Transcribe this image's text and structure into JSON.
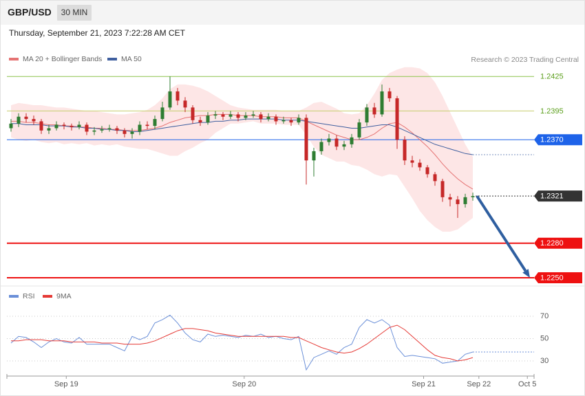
{
  "header": {
    "symbol": "GBP/USD",
    "interval": "30 MIN",
    "timestamp": "Thursday, September 21, 2023 7:22:28 AM CET"
  },
  "chart_data": [
    {
      "type": "candlestick",
      "annotation": "Research © 2023 Trading Central",
      "xlim": [
        -0.545,
        69.09
      ],
      "ylim": [
        1.22434,
        1.24556
      ],
      "up_color": "#2e7d32",
      "down_color": "#c62828",
      "open": [
        1.238,
        1.2384,
        1.239,
        1.2388,
        1.2386,
        1.2378,
        1.238,
        1.2383,
        1.2382,
        1.2381,
        1.2383,
        1.2377,
        1.2378,
        1.2379,
        1.238,
        1.2378,
        1.2375,
        1.2377,
        1.2383,
        1.2382,
        1.2388,
        1.2398,
        1.2412,
        1.2404,
        1.2398,
        1.2387,
        1.2385,
        1.2391,
        1.2392,
        1.239,
        1.2392,
        1.2389,
        1.2391,
        1.2392,
        1.2388,
        1.239,
        1.2386,
        1.2387,
        1.2385,
        1.2389,
        1.2352,
        1.236,
        1.2368,
        1.2371,
        1.2364,
        1.2366,
        1.2372,
        1.2385,
        1.2398,
        1.2392,
        1.2412,
        1.2406,
        1.237,
        1.2352,
        1.235,
        1.2346,
        1.234,
        1.2334,
        1.232,
        1.2318,
        1.2314,
        1.232
      ],
      "high": [
        1.2388,
        1.2393,
        1.2393,
        1.2391,
        1.2388,
        1.2383,
        1.2386,
        1.2385,
        1.2384,
        1.2386,
        1.2385,
        1.2381,
        1.2382,
        1.2383,
        1.2382,
        1.238,
        1.238,
        1.2386,
        1.2386,
        1.2391,
        1.2403,
        1.2425,
        1.2415,
        1.2407,
        1.24,
        1.239,
        1.2394,
        1.2395,
        1.2394,
        1.2395,
        1.2394,
        1.2394,
        1.2395,
        1.2394,
        1.2393,
        1.2392,
        1.239,
        1.2389,
        1.2392,
        1.2392,
        1.2363,
        1.2371,
        1.2375,
        1.2374,
        1.2369,
        1.2375,
        1.2388,
        1.2401,
        1.2402,
        1.2418,
        1.2415,
        1.2408,
        1.2373,
        1.2356,
        1.2353,
        1.2348,
        1.2342,
        1.2336,
        1.2323,
        1.2321,
        1.2323,
        1.2324
      ],
      "low": [
        1.2377,
        1.2381,
        1.2385,
        1.2383,
        1.2375,
        1.2375,
        1.2378,
        1.2379,
        1.2378,
        1.2379,
        1.2374,
        1.2374,
        1.2376,
        1.2377,
        1.2375,
        1.2372,
        1.2371,
        1.2374,
        1.2379,
        1.2379,
        1.2386,
        1.2396,
        1.24,
        1.2394,
        1.2384,
        1.2382,
        1.2383,
        1.2388,
        1.2387,
        1.2388,
        1.2386,
        1.2387,
        1.2389,
        1.2385,
        1.2386,
        1.2383,
        1.2384,
        1.2382,
        1.2383,
        1.2331,
        1.2338,
        1.2357,
        1.2365,
        1.2361,
        1.2361,
        1.2363,
        1.237,
        1.2382,
        1.2389,
        1.239,
        1.2403,
        1.2362,
        1.2348,
        1.2346,
        1.2343,
        1.2337,
        1.233,
        1.2316,
        1.2312,
        1.2302,
        1.2311,
        1.2317
      ],
      "close": [
        1.2384,
        1.239,
        1.2388,
        1.2386,
        1.2378,
        1.238,
        1.2383,
        1.2382,
        1.2381,
        1.2383,
        1.2377,
        1.2378,
        1.2379,
        1.238,
        1.2378,
        1.2375,
        1.2377,
        1.2383,
        1.2382,
        1.2388,
        1.2398,
        1.2412,
        1.2404,
        1.2398,
        1.2387,
        1.2385,
        1.2391,
        1.2392,
        1.239,
        1.2392,
        1.2389,
        1.2391,
        1.2392,
        1.2388,
        1.239,
        1.2386,
        1.2387,
        1.2385,
        1.2389,
        1.2352,
        1.236,
        1.2368,
        1.2371,
        1.2364,
        1.2366,
        1.2372,
        1.2385,
        1.2398,
        1.2392,
        1.2412,
        1.2406,
        1.237,
        1.2352,
        1.235,
        1.2346,
        1.234,
        1.2334,
        1.232,
        1.2318,
        1.2314,
        1.232,
        1.2321
      ],
      "bands": {
        "color": "#fde2e2",
        "upper": [
          1.24,
          1.2402,
          1.2401,
          1.24,
          1.24,
          1.2399,
          1.2398,
          1.2398,
          1.2397,
          1.2396,
          1.2395,
          1.2395,
          1.2394,
          1.2393,
          1.2392,
          1.2392,
          1.2393,
          1.2394,
          1.2396,
          1.24,
          1.2406,
          1.2414,
          1.2418,
          1.2418,
          1.2417,
          1.2415,
          1.2412,
          1.2408,
          1.2404,
          1.24,
          1.2398,
          1.2397,
          1.2396,
          1.2396,
          1.2396,
          1.2396,
          1.2395,
          1.2395,
          1.2395,
          1.2398,
          1.2402,
          1.2403,
          1.24,
          1.2397,
          1.2393,
          1.2392,
          1.2393,
          1.24,
          1.241,
          1.2422,
          1.2428,
          1.2431,
          1.2433,
          1.2433,
          1.2432,
          1.2428,
          1.242,
          1.2408,
          1.2394,
          1.238,
          1.2366,
          1.2355
        ],
        "lower": [
          1.2372,
          1.237,
          1.2369,
          1.237,
          1.2368,
          1.2367,
          1.2368,
          1.2366,
          1.2367,
          1.2366,
          1.2367,
          1.2365,
          1.2366,
          1.2365,
          1.2366,
          1.2364,
          1.2363,
          1.2362,
          1.2362,
          1.236,
          1.2358,
          1.2356,
          1.2356,
          1.236,
          1.2363,
          1.2367,
          1.237,
          1.2376,
          1.238,
          1.2384,
          1.2384,
          1.2385,
          1.2386,
          1.2384,
          1.2384,
          1.2384,
          1.2383,
          1.2383,
          1.2383,
          1.2374,
          1.2364,
          1.2357,
          1.2354,
          1.2351,
          1.2351,
          1.2348,
          1.2347,
          1.2344,
          1.234,
          1.2338,
          1.234,
          1.2339,
          1.2329,
          1.2319,
          1.2308,
          1.23,
          1.2294,
          1.229,
          1.229,
          1.2292,
          1.2297,
          1.2302
        ]
      },
      "series": [
        {
          "name": "MA 20 + Bollinger Bands",
          "color": "#e57373",
          "values": [
            1.2386,
            1.2386,
            1.2385,
            1.2385,
            1.2384,
            1.2383,
            1.2383,
            1.2382,
            1.2382,
            1.2381,
            1.2381,
            1.238,
            1.238,
            1.2379,
            1.2379,
            1.2378,
            1.2378,
            1.2378,
            1.2379,
            1.238,
            1.2382,
            1.2385,
            1.2387,
            1.2389,
            1.239,
            1.2391,
            1.2391,
            1.2392,
            1.2392,
            1.2392,
            1.2391,
            1.2391,
            1.2391,
            1.239,
            1.239,
            1.239,
            1.2389,
            1.2389,
            1.2389,
            1.2386,
            1.2383,
            1.238,
            1.2377,
            1.2374,
            1.2372,
            1.237,
            1.237,
            1.2372,
            1.2375,
            1.238,
            1.2384,
            1.2385,
            1.2381,
            1.2376,
            1.237,
            1.2364,
            1.2357,
            1.2349,
            1.2342,
            1.2336,
            1.2331,
            1.2327
          ]
        },
        {
          "name": "MA 50",
          "color": "#3f5f9f",
          "values": [
            1.2384,
            1.2384,
            1.2383,
            1.2383,
            1.2383,
            1.2382,
            1.2382,
            1.2382,
            1.2381,
            1.2381,
            1.238,
            1.238,
            1.2379,
            1.2379,
            1.2378,
            1.2378,
            1.2377,
            1.2377,
            1.2378,
            1.2379,
            1.238,
            1.2381,
            1.2382,
            1.2383,
            1.2384,
            1.2385,
            1.2385,
            1.2386,
            1.2386,
            1.2387,
            1.2387,
            1.2388,
            1.2388,
            1.2388,
            1.2388,
            1.2388,
            1.2387,
            1.2387,
            1.2387,
            1.2386,
            1.2385,
            1.2384,
            1.2383,
            1.2382,
            1.2381,
            1.238,
            1.238,
            1.2381,
            1.2382,
            1.2383,
            1.2383,
            1.2381,
            1.2378,
            1.2375,
            1.2372,
            1.2369,
            1.2366,
            1.2364,
            1.2362,
            1.236,
            1.2358,
            1.2357
          ]
        }
      ],
      "levels": [
        {
          "value": 1.2425,
          "label": "1.2425",
          "color": "#8bc34a",
          "text_color": "#5a9e1a",
          "width": 1,
          "tag": false,
          "style": "solid"
        },
        {
          "value": 1.2395,
          "label": "1.2395",
          "color": "#c5cc6a",
          "text_color": "#5a9e1a",
          "width": 1,
          "tag": false,
          "style": "solid"
        },
        {
          "value": 1.237,
          "label": "1.2370",
          "color": "#1e63e9",
          "text_color": "#ffffff",
          "width": 1,
          "tag": true,
          "style": "solid"
        },
        {
          "value": 1.2321,
          "label": "1.2321",
          "color": "#333333",
          "text_color": "#ffffff",
          "width": 1,
          "tag": true,
          "style": "dotted"
        },
        {
          "value": 1.228,
          "label": "1.2280",
          "color": "#ee1111",
          "text_color": "#ffffff",
          "width": 2,
          "tag": true,
          "style": "solid"
        },
        {
          "value": 1.225,
          "label": "1.2250",
          "color": "#ee1111",
          "text_color": "#ffffff",
          "width": 2,
          "tag": true,
          "style": "solid"
        }
      ],
      "arrow_color": "#2f5fa0"
    },
    {
      "type": "line",
      "xlim": [
        -0.545,
        69.09
      ],
      "ylim": [
        20,
        80
      ],
      "yticks": [
        30,
        50,
        70
      ],
      "grid": true,
      "xticks": [
        {
          "value": 7.3,
          "label": "Sep 19"
        },
        {
          "value": 30.8,
          "label": "Sep 20"
        },
        {
          "value": 54.5,
          "label": "Sep 21"
        },
        {
          "value": 61.8,
          "label": "Sep 22"
        },
        {
          "value": 68.2,
          "label": "Oct 5"
        }
      ],
      "series": [
        {
          "name": "RSI",
          "color": "#6a8fd8",
          "values": [
            46,
            52,
            51,
            47,
            42,
            47,
            50,
            47,
            46,
            51,
            45,
            45,
            45,
            45,
            42,
            39,
            52,
            49,
            52,
            64,
            67,
            71,
            64,
            55,
            49,
            47,
            54,
            52,
            53,
            52,
            51,
            53,
            52,
            54,
            51,
            52,
            50,
            49,
            52,
            22,
            33,
            36,
            39,
            36,
            42,
            45,
            60,
            67,
            64,
            67,
            62,
            42,
            34,
            35,
            34,
            33,
            32,
            28,
            29,
            30,
            36,
            38
          ]
        },
        {
          "name": "9MA",
          "color": "#e53935",
          "values": [
            48,
            48,
            49,
            49,
            49,
            48,
            48,
            48,
            47,
            47,
            47,
            47,
            46,
            46,
            46,
            45,
            45,
            45,
            46,
            48,
            51,
            54,
            57,
            59,
            59,
            58,
            57,
            55,
            54,
            53,
            52,
            52,
            52,
            52,
            52,
            52,
            52,
            51,
            51,
            48,
            45,
            42,
            40,
            38,
            37,
            38,
            41,
            45,
            50,
            55,
            60,
            62,
            58,
            52,
            46,
            40,
            35,
            33,
            32,
            30,
            31,
            33
          ]
        }
      ]
    }
  ]
}
